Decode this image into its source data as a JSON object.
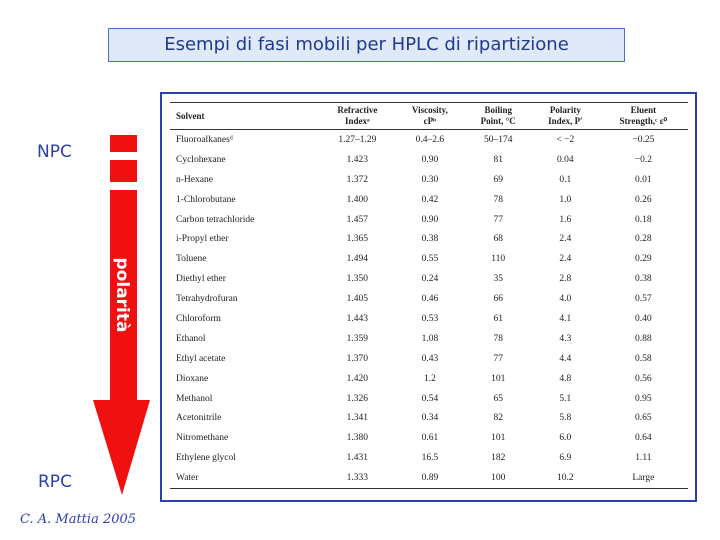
{
  "slide": {
    "title": "Esempi di fasi mobili per HPLC di ripartizione",
    "arrow": {
      "top_label": "NPC",
      "bottom_label": "RPC",
      "text": "polarità"
    },
    "credit": "C. A. Mattia 2005",
    "table": {
      "header": [
        [
          "Solvent"
        ],
        [
          "Refractive",
          "Indexᵃ"
        ],
        [
          "Viscosity,",
          "cPᵇ"
        ],
        [
          "Boiling",
          "Point, °C"
        ],
        [
          "Polarity",
          "Index, P′"
        ],
        [
          "Eluent",
          "Strength,ᶜ ε⁰"
        ]
      ],
      "rows": [
        [
          "Fluoroalkanesᵈ",
          "1.27–1.29",
          "0.4–2.6",
          "50–174",
          "< −2",
          "−0.25"
        ],
        [
          "Cyclohexane",
          "1.423",
          "0.90",
          "81",
          "0.04",
          "−0.2"
        ],
        [
          "n-Hexane",
          "1.372",
          "0.30",
          "69",
          "0.1",
          "0.01"
        ],
        [
          "1-Chlorobutane",
          "1.400",
          "0.42",
          "78",
          "1.0",
          "0.26"
        ],
        [
          "Carbon tetrachloride",
          "1.457",
          "0.90",
          "77",
          "1.6",
          "0.18"
        ],
        [
          "i-Propyl ether",
          "1.365",
          "0.38",
          "68",
          "2.4",
          "0.28"
        ],
        [
          "Toluene",
          "1.494",
          "0.55",
          "110",
          "2.4",
          "0.29"
        ],
        [
          "Diethyl ether",
          "1.350",
          "0.24",
          "35",
          "2.8",
          "0.38"
        ],
        [
          "Tetrahydrofuran",
          "1.405",
          "0.46",
          "66",
          "4.0",
          "0.57"
        ],
        [
          "Chloroform",
          "1.443",
          "0.53",
          "61",
          "4.1",
          "0.40"
        ],
        [
          "Ethanol",
          "1.359",
          "1.08",
          "78",
          "4.3",
          "0.88"
        ],
        [
          "Ethyl acetate",
          "1.370",
          "0.43",
          "77",
          "4.4",
          "0.58"
        ],
        [
          "Dioxane",
          "1.420",
          "1.2",
          "101",
          "4.8",
          "0.56"
        ],
        [
          "Methanol",
          "1.326",
          "0.54",
          "65",
          "5.1",
          "0.95"
        ],
        [
          "Acetonitrile",
          "1.341",
          "0.34",
          "82",
          "5.8",
          "0.65"
        ],
        [
          "Nitromethane",
          "1.380",
          "0.61",
          "101",
          "6.0",
          "0.64"
        ],
        [
          "Ethylene glycol",
          "1.431",
          "16.5",
          "182",
          "6.9",
          "1.11"
        ],
        [
          "Water",
          "1.333",
          "0.89",
          "100",
          "10.2",
          "Large"
        ]
      ]
    }
  }
}
